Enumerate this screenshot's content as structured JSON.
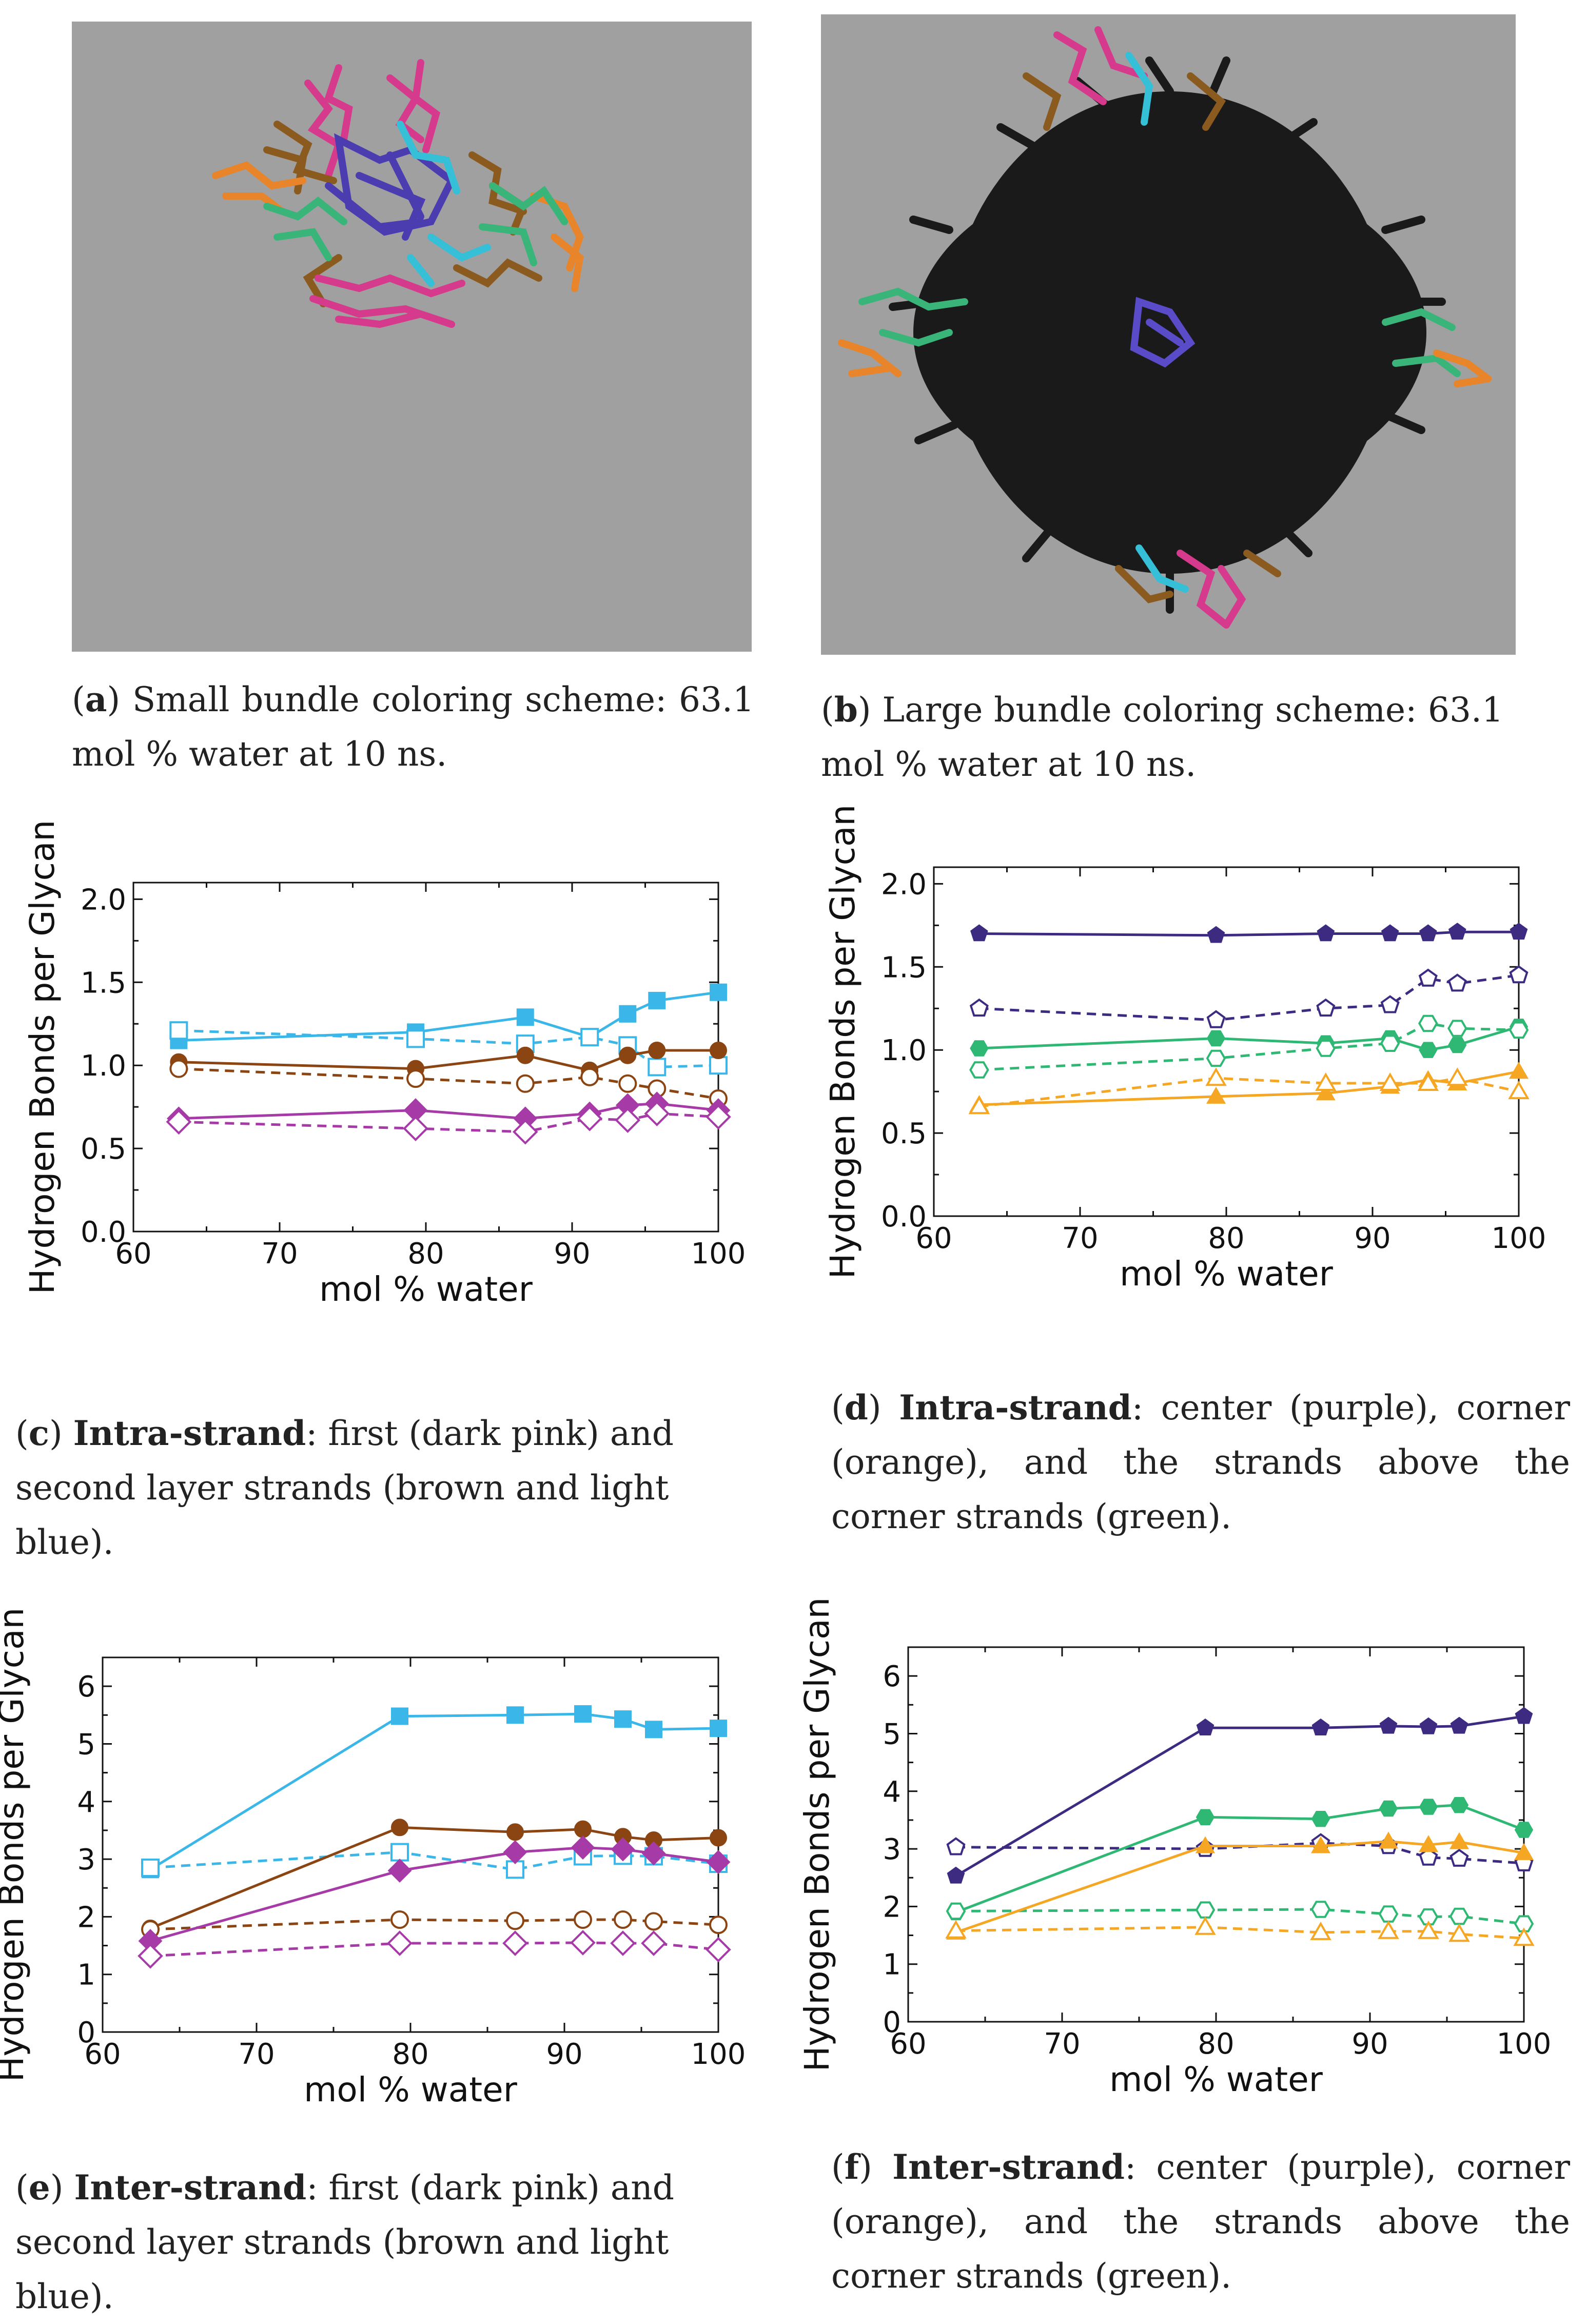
{
  "panels": {
    "a": {
      "letter": "a",
      "caption": "Small bundle coloring scheme: 63.1 mol % water at 10 ns."
    },
    "b": {
      "letter": "b",
      "caption": "Large bundle coloring scheme: 63.1 mol % water at 10 ns."
    },
    "c": {
      "letter": "c",
      "bold": "Intra-strand",
      "caption": ": first (dark pink) and second layer strands (brown and light blue)."
    },
    "d": {
      "letter": "d",
      "bold": "Intra-strand",
      "caption": ": center (purple), corner (orange), and the strands above the corner strands (green)."
    },
    "e": {
      "letter": "e",
      "bold": "Inter-strand",
      "caption": ": first (dark pink) and second layer strands (brown and light blue)."
    },
    "f": {
      "letter": "f",
      "bold": "Inter-strand",
      "caption": ": center (purple), corner (orange), and the strands above the corner strands (green)."
    }
  },
  "colors": {
    "light_blue": "#3ab7e8",
    "brown": "#8b4513",
    "dark_pink": "#a63aa6",
    "purple": "#3d2b82",
    "green": "#2eb873",
    "orange": "#f5a623",
    "grey_bg": "#a0a0a0"
  },
  "chart_data": [
    {
      "id": "c",
      "type": "line",
      "xlabel": "mol % water",
      "ylabel": "Hydrogen Bonds per Glycan",
      "xlim": [
        60,
        100
      ],
      "ylim": [
        0,
        2.1
      ],
      "xticks": [
        60,
        70,
        80,
        90,
        100
      ],
      "yticks": [
        0.0,
        0.5,
        1.0,
        1.5,
        2.0
      ],
      "ytick_labels": [
        "0.0",
        "0.5",
        "1.0",
        "1.5",
        "2.0"
      ],
      "x": [
        63.1,
        79.3,
        86.8,
        91.2,
        93.8,
        95.8,
        100
      ],
      "series": [
        {
          "name": "light blue solid",
          "color": "light_blue",
          "style": "solid",
          "marker": "square",
          "filled": true,
          "values": [
            1.15,
            1.2,
            1.29,
            1.17,
            1.31,
            1.39,
            1.44
          ]
        },
        {
          "name": "light blue dashed",
          "color": "light_blue",
          "style": "dashed",
          "marker": "square",
          "filled": false,
          "values": [
            1.21,
            1.16,
            1.13,
            1.17,
            1.12,
            0.99,
            1.0
          ]
        },
        {
          "name": "brown solid",
          "color": "brown",
          "style": "solid",
          "marker": "circle",
          "filled": true,
          "values": [
            1.02,
            0.98,
            1.06,
            0.97,
            1.06,
            1.09,
            1.09
          ]
        },
        {
          "name": "brown dashed",
          "color": "brown",
          "style": "dashed",
          "marker": "circle",
          "filled": false,
          "values": [
            0.98,
            0.92,
            0.89,
            0.93,
            0.89,
            0.86,
            0.8
          ]
        },
        {
          "name": "dark pink solid",
          "color": "dark_pink",
          "style": "solid",
          "marker": "diamond",
          "filled": true,
          "values": [
            0.68,
            0.73,
            0.68,
            0.71,
            0.76,
            0.77,
            0.73
          ]
        },
        {
          "name": "dark pink dashed",
          "color": "dark_pink",
          "style": "dashed",
          "marker": "diamond",
          "filled": false,
          "values": [
            0.66,
            0.62,
            0.6,
            0.68,
            0.67,
            0.71,
            0.69
          ]
        }
      ]
    },
    {
      "id": "d",
      "type": "line",
      "xlabel": "mol % water",
      "ylabel": "Hydrogen Bonds per Glycan",
      "xlim": [
        60,
        100
      ],
      "ylim": [
        0,
        2.1
      ],
      "xticks": [
        60,
        70,
        80,
        90,
        100
      ],
      "yticks": [
        0.0,
        0.5,
        1.0,
        1.5,
        2.0
      ],
      "ytick_labels": [
        "0.0",
        "0.5",
        "1.0",
        "1.5",
        "2.0"
      ],
      "x": [
        63.1,
        79.3,
        86.8,
        91.2,
        93.8,
        95.8,
        100
      ],
      "series": [
        {
          "name": "purple solid",
          "color": "purple",
          "style": "solid",
          "marker": "pentagon",
          "filled": true,
          "values": [
            1.7,
            1.69,
            1.7,
            1.7,
            1.7,
            1.71,
            1.71
          ]
        },
        {
          "name": "purple dashed",
          "color": "purple",
          "style": "dashed",
          "marker": "pentagon",
          "filled": false,
          "values": [
            1.25,
            1.18,
            1.25,
            1.27,
            1.43,
            1.4,
            1.45
          ]
        },
        {
          "name": "green solid",
          "color": "green",
          "style": "solid",
          "marker": "hexagon",
          "filled": true,
          "values": [
            1.01,
            1.07,
            1.04,
            1.07,
            1.0,
            1.03,
            1.14
          ]
        },
        {
          "name": "green dashed",
          "color": "green",
          "style": "dashed",
          "marker": "hexagon",
          "filled": false,
          "values": [
            0.88,
            0.95,
            1.01,
            1.04,
            1.16,
            1.13,
            1.12
          ]
        },
        {
          "name": "orange solid",
          "color": "orange",
          "style": "solid",
          "marker": "triangle",
          "filled": true,
          "values": [
            0.67,
            0.72,
            0.74,
            0.78,
            0.82,
            0.8,
            0.87
          ]
        },
        {
          "name": "orange dashed",
          "color": "orange",
          "style": "dashed",
          "marker": "triangle",
          "filled": false,
          "values": [
            0.66,
            0.83,
            0.8,
            0.8,
            0.8,
            0.83,
            0.75
          ]
        }
      ]
    },
    {
      "id": "e",
      "type": "line",
      "xlabel": "mol % water",
      "ylabel": "Hydrogen Bonds per Glycan",
      "xlim": [
        60,
        100
      ],
      "ylim": [
        0,
        6.5
      ],
      "xticks": [
        60,
        70,
        80,
        90,
        100
      ],
      "yticks": [
        0,
        1,
        2,
        3,
        4,
        5,
        6
      ],
      "ytick_labels": [
        "0",
        "1",
        "2",
        "3",
        "4",
        "5",
        "6"
      ],
      "x": [
        63.1,
        79.3,
        86.8,
        91.2,
        93.8,
        95.8,
        100
      ],
      "series": [
        {
          "name": "light blue solid",
          "color": "light_blue",
          "style": "solid",
          "marker": "square",
          "filled": true,
          "values": [
            2.82,
            5.48,
            5.5,
            5.52,
            5.43,
            5.25,
            5.27
          ]
        },
        {
          "name": "light blue dashed",
          "color": "light_blue",
          "style": "dashed",
          "marker": "square",
          "filled": false,
          "values": [
            2.85,
            3.12,
            2.82,
            3.05,
            3.06,
            3.05,
            2.92
          ]
        },
        {
          "name": "brown solid",
          "color": "brown",
          "style": "solid",
          "marker": "circle",
          "filled": true,
          "values": [
            1.8,
            3.55,
            3.47,
            3.52,
            3.39,
            3.33,
            3.37
          ]
        },
        {
          "name": "brown dashed",
          "color": "brown",
          "style": "dashed",
          "marker": "circle",
          "filled": false,
          "values": [
            1.78,
            1.95,
            1.93,
            1.95,
            1.95,
            1.92,
            1.86
          ]
        },
        {
          "name": "dark pink solid",
          "color": "dark_pink",
          "style": "solid",
          "marker": "diamond",
          "filled": true,
          "values": [
            1.58,
            2.8,
            3.12,
            3.2,
            3.17,
            3.1,
            2.95
          ]
        },
        {
          "name": "dark pink dashed",
          "color": "dark_pink",
          "style": "dashed",
          "marker": "diamond",
          "filled": false,
          "values": [
            1.32,
            1.54,
            1.54,
            1.55,
            1.54,
            1.54,
            1.43
          ]
        }
      ]
    },
    {
      "id": "f",
      "type": "line",
      "xlabel": "mol % water",
      "ylabel": "Hydrogen Bonds per Glycan",
      "xlim": [
        60,
        100
      ],
      "ylim": [
        0,
        6.5
      ],
      "xticks": [
        60,
        70,
        80,
        90,
        100
      ],
      "yticks": [
        0,
        1,
        2,
        3,
        4,
        5,
        6
      ],
      "ytick_labels": [
        "0",
        "1",
        "2",
        "3",
        "4",
        "5",
        "6"
      ],
      "x": [
        63.1,
        79.3,
        86.8,
        91.2,
        93.8,
        95.8,
        100
      ],
      "series": [
        {
          "name": "purple solid",
          "color": "purple",
          "style": "solid",
          "marker": "pentagon",
          "filled": true,
          "values": [
            2.53,
            5.1,
            5.1,
            5.13,
            5.12,
            5.13,
            5.3
          ]
        },
        {
          "name": "purple dashed",
          "color": "purple",
          "style": "dashed",
          "marker": "pentagon",
          "filled": false,
          "values": [
            3.03,
            3.0,
            3.1,
            3.05,
            2.85,
            2.83,
            2.75
          ]
        },
        {
          "name": "green solid",
          "color": "green",
          "style": "solid",
          "marker": "hexagon",
          "filled": true,
          "values": [
            1.9,
            3.55,
            3.52,
            3.7,
            3.73,
            3.76,
            3.33
          ]
        },
        {
          "name": "green dashed",
          "color": "green",
          "style": "dashed",
          "marker": "hexagon",
          "filled": false,
          "values": [
            1.92,
            1.94,
            1.95,
            1.87,
            1.82,
            1.83,
            1.7
          ]
        },
        {
          "name": "orange solid",
          "color": "orange",
          "style": "solid",
          "marker": "triangle",
          "filled": true,
          "values": [
            1.55,
            3.05,
            3.05,
            3.13,
            3.07,
            3.12,
            2.93
          ]
        },
        {
          "name": "orange dashed",
          "color": "orange",
          "style": "dashed",
          "marker": "triangle",
          "filled": false,
          "values": [
            1.58,
            1.64,
            1.55,
            1.57,
            1.57,
            1.52,
            1.45
          ]
        }
      ]
    }
  ]
}
